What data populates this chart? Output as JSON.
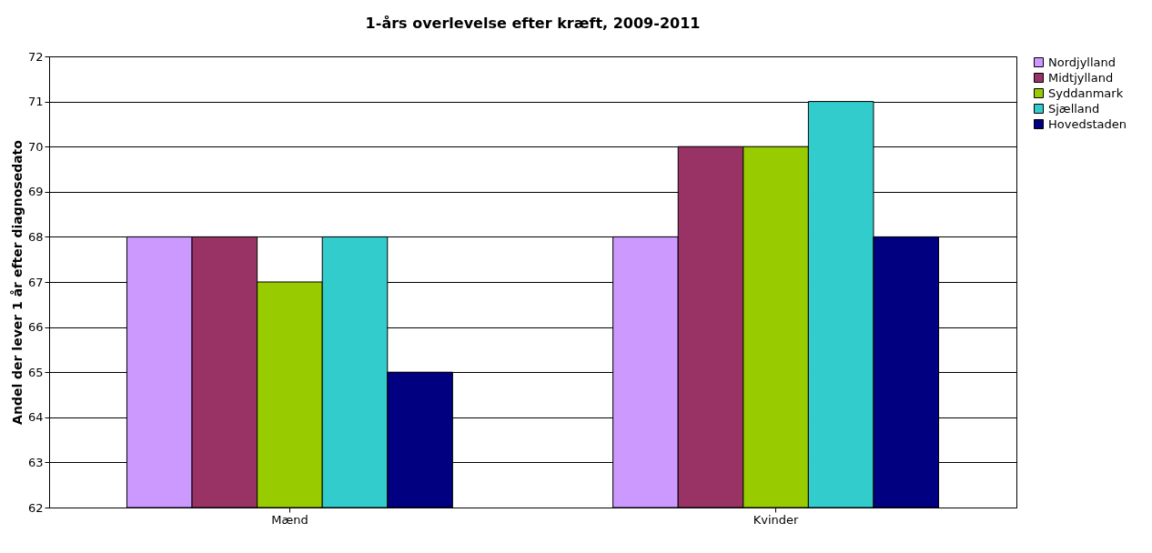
{
  "chart_data": {
    "type": "bar",
    "title": "1-års overlevelse efter kræft, 2009-2011",
    "ylabel": "Andel der lever 1 år efter diagnosedato",
    "categories": [
      "Mænd",
      "Kvinder"
    ],
    "series": [
      {
        "name": "Nordjylland",
        "color": "#cc99ff",
        "values": [
          68,
          68
        ]
      },
      {
        "name": "Midtjylland",
        "color": "#993366",
        "values": [
          68,
          70
        ]
      },
      {
        "name": "Syddanmark",
        "color": "#99cc00",
        "values": [
          67,
          70
        ]
      },
      {
        "name": "Sjælland",
        "color": "#33cccc",
        "values": [
          68,
          71
        ]
      },
      {
        "name": "Hovedstaden",
        "color": "#000080",
        "values": [
          65,
          68
        ]
      }
    ],
    "ylim": [
      62,
      72
    ],
    "yticks": [
      62,
      63,
      64,
      65,
      66,
      67,
      68,
      69,
      70,
      71,
      72
    ],
    "grid": "y",
    "legend": "right"
  }
}
